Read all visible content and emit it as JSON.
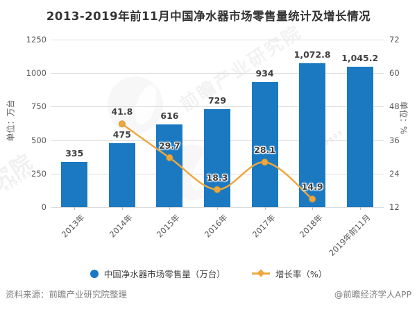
{
  "title": "2013-2019年前11月中国净水器市场零售量统计及增长情况",
  "axes": {
    "left": {
      "title": "单位：万台",
      "ticks": [
        "1250",
        "1000",
        "750",
        "500",
        "250",
        "0"
      ]
    },
    "right": {
      "title": "单位：%",
      "ticks": [
        "72",
        "60",
        "48",
        "36",
        "24",
        "12"
      ]
    }
  },
  "chart_data": {
    "type": "bar+line",
    "categories": [
      "2013年",
      "2014年",
      "2015年",
      "2016年",
      "2017年",
      "2018年",
      "2019年前11月"
    ],
    "series": [
      {
        "name": "中国净水器市场零售量（万台）",
        "type": "bar",
        "axis": "left",
        "color": "#1B79C2",
        "values": [
          335,
          475,
          616,
          729,
          934,
          1072.8,
          1045.2
        ],
        "labels": [
          "335",
          "475",
          "616",
          "729",
          "934",
          "1,072.8",
          "1,045.2"
        ]
      },
      {
        "name": "增长率（%）",
        "type": "line",
        "axis": "right",
        "color": "#EDA73F",
        "categories": [
          "2014年",
          "2015年",
          "2016年",
          "2017年",
          "2018年"
        ],
        "values": [
          41.8,
          29.7,
          18.3,
          28.1,
          14.9
        ],
        "labels": [
          "41.8",
          "29.7",
          "18.3",
          "28.1",
          "14.9"
        ]
      }
    ],
    "left_ylim": [
      0,
      1250
    ],
    "right_ylim": [
      12,
      72
    ],
    "grid": true,
    "legend_position": "bottom"
  },
  "legend": [
    {
      "label": "中国净水器市场零售量（万台）",
      "marker": "circle",
      "color": "#1B79C2"
    },
    {
      "label": "增长率（%）",
      "marker": "line-diamond",
      "color": "#EDA73F"
    }
  ],
  "footer": {
    "source": "资料来源：前瞻产业研究院整理",
    "credit": "@前瞻经济学人APP"
  },
  "watermark": {
    "brand": "前瞻产业研究院",
    "brand_short": "究院",
    "code": "839599"
  },
  "colors": {
    "bar": "#1B79C2",
    "line": "#EDA73F",
    "grid": "#DCDCDC",
    "label_dark": "#404040",
    "axis_gray": "#595959",
    "footer_gray": "#808080"
  }
}
